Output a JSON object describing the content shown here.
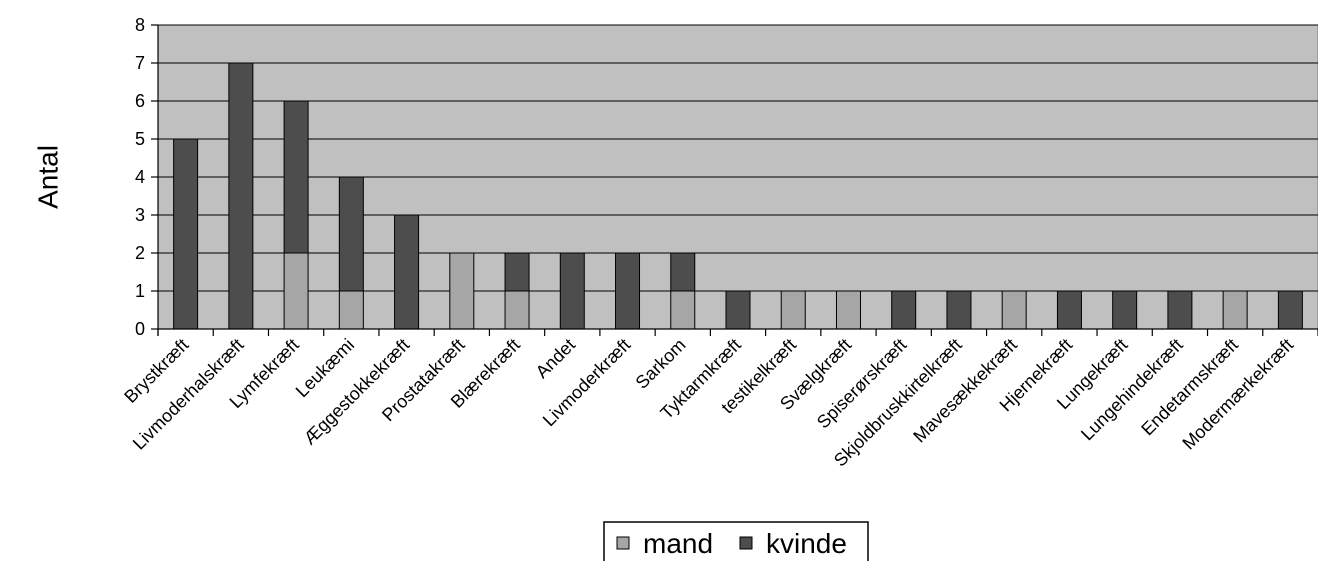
{
  "chart_data": {
    "type": "bar",
    "stacked": true,
    "title": "",
    "xlabel": "",
    "ylabel": "Antal",
    "ylim": [
      0,
      8
    ],
    "yticks": [
      0,
      1,
      2,
      3,
      4,
      5,
      6,
      7,
      8
    ],
    "grid": true,
    "legend_position": "bottom",
    "categories": [
      "Brystkræft",
      "Livmoderhalskræft",
      "Lymfekræft",
      "Leukæmi",
      "Æggestokkekræft",
      "Prostatakræft",
      "Blærekræft",
      "Andet",
      "Livmoderkræft",
      "Sarkom",
      "Tyktarmkræft",
      "testikelkræft",
      "Svælgkræft",
      "Spiserørskræft",
      "Skjoldbruskkirtelkræft",
      "Mavesækkekræft",
      "Hjernekræft",
      "Lungekræft",
      "Lungehindekræft",
      "Endetarmskræft",
      "Modermærkekræft"
    ],
    "series": [
      {
        "name": "mand",
        "color": "#a6a6a6",
        "values": [
          0,
          0,
          2,
          1,
          0,
          2,
          1,
          0,
          0,
          1,
          0,
          1,
          1,
          0,
          0,
          1,
          0,
          0,
          0,
          1,
          0
        ]
      },
      {
        "name": "kvinde",
        "color": "#4d4d4d",
        "values": [
          5,
          7,
          4,
          3,
          3,
          0,
          1,
          2,
          2,
          1,
          1,
          0,
          0,
          1,
          1,
          0,
          1,
          1,
          1,
          0,
          1
        ]
      }
    ],
    "plot_background": "#c0c0c0"
  }
}
